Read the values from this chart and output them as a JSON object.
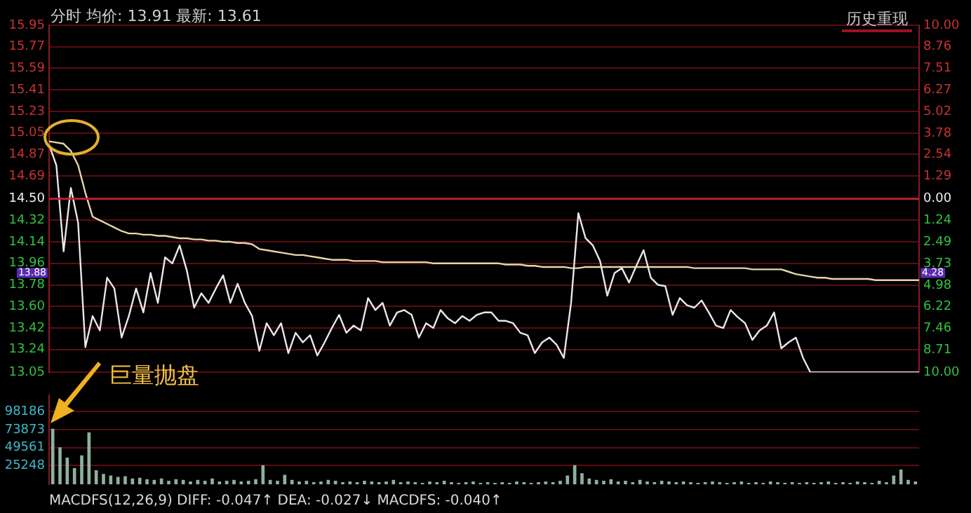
{
  "chart_data": [
    {
      "type": "line",
      "title": "分时 均价: 13.91 最新: 13.61",
      "annotations": [
        "历史重现",
        {
          "text": "13.88",
          "y": 13.88
        },
        {
          "text": "4.28",
          "y": 13.88
        }
      ],
      "categories": [
        null,
        null,
        null,
        null,
        null,
        null,
        null,
        null,
        null,
        null,
        null,
        null,
        null,
        null,
        null,
        null,
        null,
        null,
        null,
        null,
        null,
        null,
        null,
        null,
        null,
        null,
        null,
        null,
        null,
        null,
        null,
        null,
        null,
        null,
        null,
        null,
        null,
        null,
        null,
        null,
        null,
        null,
        null,
        null,
        null,
        null,
        null,
        null,
        null,
        null,
        null,
        null,
        null,
        null,
        null,
        null,
        null,
        null,
        null,
        null,
        null,
        null,
        null,
        null,
        null,
        null,
        null,
        null,
        null,
        null,
        null,
        null,
        null,
        null,
        null,
        null,
        null,
        null,
        null,
        null,
        null,
        null,
        null,
        null,
        null,
        null,
        null,
        null,
        null,
        null,
        null,
        null,
        null,
        null,
        null,
        null,
        null,
        null,
        null,
        null,
        null,
        null,
        null,
        null,
        null,
        null,
        null,
        null,
        null,
        null,
        null,
        null,
        null,
        null,
        null,
        null,
        null,
        null,
        null,
        null,
        null
      ],
      "series": [
        {
          "color": "#e8e8e8",
          "values": [
            14.95,
            14.78,
            14.06,
            14.59,
            14.3,
            13.26,
            13.52,
            13.4,
            13.84,
            13.75,
            13.34,
            13.52,
            13.75,
            13.55,
            13.88,
            13.63,
            14.01,
            13.96,
            14.11,
            13.9,
            13.59,
            13.71,
            13.63,
            13.75,
            13.86,
            13.63,
            13.79,
            13.63,
            13.52,
            13.23,
            13.46,
            13.36,
            13.46,
            13.21,
            13.38,
            13.3,
            13.36,
            13.19,
            13.3,
            13.42,
            13.53,
            13.38,
            13.44,
            13.4,
            13.67,
            13.57,
            13.63,
            13.44,
            13.55,
            13.57,
            13.53,
            13.34,
            13.46,
            13.42,
            13.57,
            13.5,
            13.46,
            13.52,
            13.48,
            13.53,
            13.55,
            13.55,
            13.48,
            13.48,
            13.46,
            13.38,
            13.36,
            13.21,
            13.3,
            13.34,
            13.28,
            13.17,
            13.63,
            14.38,
            14.17,
            14.11,
            13.98,
            13.69,
            13.88,
            13.92,
            13.8,
            13.94,
            14.07,
            13.84,
            13.78,
            13.77,
            13.53,
            13.67,
            13.61,
            13.59,
            13.65,
            13.55,
            13.44,
            13.42,
            13.57,
            13.51,
            13.46,
            13.32,
            13.4,
            13.44,
            13.55,
            13.25,
            13.3,
            13.34,
            13.17,
            13.05,
            13.05,
            13.05,
            13.05,
            13.05,
            13.05,
            13.05,
            13.05,
            13.05,
            13.05,
            13.05,
            13.05,
            13.05,
            13.05,
            13.05,
            13.05
          ]
        },
        {
          "color": "#e6d6a8",
          "values": [
            14.98,
            14.97,
            14.96,
            14.9,
            14.78,
            14.55,
            14.35,
            14.32,
            14.29,
            14.26,
            14.23,
            14.21,
            14.21,
            14.2,
            14.2,
            14.19,
            14.19,
            14.18,
            14.17,
            14.17,
            14.16,
            14.16,
            14.15,
            14.15,
            14.14,
            14.14,
            14.13,
            14.13,
            14.12,
            14.08,
            14.07,
            14.06,
            14.05,
            14.04,
            14.03,
            14.03,
            14.02,
            14.01,
            14.0,
            13.99,
            13.99,
            13.99,
            13.98,
            13.98,
            13.98,
            13.98,
            13.97,
            13.97,
            13.97,
            13.97,
            13.97,
            13.97,
            13.97,
            13.96,
            13.96,
            13.96,
            13.96,
            13.96,
            13.96,
            13.96,
            13.96,
            13.96,
            13.96,
            13.95,
            13.95,
            13.95,
            13.94,
            13.94,
            13.93,
            13.93,
            13.93,
            13.93,
            13.92,
            13.92,
            13.93,
            13.93,
            13.93,
            13.93,
            13.93,
            13.93,
            13.93,
            13.93,
            13.93,
            13.93,
            13.93,
            13.93,
            13.93,
            13.93,
            13.93,
            13.92,
            13.92,
            13.92,
            13.92,
            13.92,
            13.92,
            13.92,
            13.92,
            13.91,
            13.91,
            13.91,
            13.91,
            13.91,
            13.89,
            13.87,
            13.86,
            13.85,
            13.84,
            13.84,
            13.83,
            13.83,
            13.83,
            13.83,
            13.83,
            13.83,
            13.82,
            13.82,
            13.82,
            13.82,
            13.82,
            13.82,
            13.82
          ]
        }
      ],
      "ylim": [
        13.05,
        15.95
      ],
      "yticks": [
        13.05,
        13.24,
        13.42,
        {
          "value": 13.6,
          "label": "13.60"
        },
        13.78,
        13.96,
        14.14,
        14.32,
        {
          "value": 14.5,
          "label": "14.50"
        },
        14.69,
        14.87,
        15.05,
        15.23,
        15.41,
        15.59,
        15.77,
        15.95
      ],
      "y2lim": [
        -10,
        10
      ],
      "y2ticks": [
        {
          "value": -10,
          "label": "10.00"
        },
        {
          "value": -8.71,
          "label": "8.71"
        },
        {
          "value": -7.46,
          "label": "7.46"
        },
        {
          "value": -6.22,
          "label": "6.22"
        },
        {
          "value": -4.98,
          "label": "4.98"
        },
        {
          "value": -3.73,
          "label": "3.73"
        },
        {
          "value": -2.49,
          "label": "2.49"
        },
        {
          "value": -1.24,
          "label": "1.24"
        },
        {
          "value": 0,
          "label": "0.00"
        },
        1.29,
        2.54,
        3.78,
        5.02,
        6.27,
        7.51,
        8.76,
        {
          "value": 10,
          "label": "10.00"
        }
      ],
      "ref_lines": [
        {
          "axis": "y",
          "value": 14.5,
          "color": "#c8202c"
        }
      ],
      "grid": "y",
      "tick_labels": "y"
    },
    {
      "type": "bar",
      "annotations": [
        "巨量抛盘",
        "MACDFS(12,26,9) DIFF: -0.047↑ DEA: -0.027↓ MACDFS: -0.040↑"
      ],
      "categories": [
        null,
        null,
        null,
        null,
        null,
        null,
        null,
        null,
        null,
        null,
        null,
        null,
        null,
        null,
        null,
        null,
        null,
        null,
        null,
        null,
        null,
        null,
        null,
        null,
        null,
        null,
        null,
        null,
        null,
        null,
        null,
        null,
        null,
        null,
        null,
        null,
        null,
        null,
        null,
        null,
        null,
        null,
        null,
        null,
        null,
        null,
        null,
        null,
        null,
        null,
        null,
        null,
        null,
        null,
        null,
        null,
        null,
        null,
        null,
        null,
        null,
        null,
        null,
        null,
        null,
        null,
        null,
        null,
        null,
        null,
        null,
        null,
        null,
        null,
        null,
        null,
        null,
        null,
        null,
        null,
        null,
        null,
        null,
        null,
        null,
        null,
        null,
        null,
        null,
        null,
        null,
        null,
        null,
        null,
        null,
        null,
        null,
        null,
        null,
        null,
        null,
        null,
        null,
        null,
        null,
        null,
        null,
        null,
        null,
        null,
        null,
        null,
        null,
        null,
        null,
        null,
        null,
        null,
        null,
        null
      ],
      "values": [
        75000,
        50000,
        36000,
        22000,
        39000,
        70000,
        19000,
        14000,
        12000,
        10000,
        11000,
        8000,
        9000,
        7000,
        6000,
        8000,
        5000,
        7000,
        6000,
        4000,
        6000,
        5000,
        8000,
        4000,
        5000,
        6000,
        4000,
        5000,
        7000,
        26000,
        6000,
        5000,
        13000,
        6000,
        4000,
        5000,
        3000,
        4000,
        6000,
        5000,
        3000,
        4000,
        3000,
        5000,
        4000,
        3000,
        4000,
        6000,
        3000,
        4000,
        3000,
        2000,
        4000,
        3000,
        5000,
        3000,
        2000,
        3000,
        4000,
        2000,
        3000,
        2000,
        3000,
        2000,
        4000,
        3000,
        2000,
        3000,
        4000,
        3000,
        5000,
        12000,
        26000,
        15000,
        8000,
        6000,
        5000,
        7000,
        4000,
        5000,
        3000,
        6000,
        4000,
        3000,
        5000,
        4000,
        3000,
        4000,
        3000,
        2000,
        3000,
        4000,
        3000,
        2000,
        3000,
        4000,
        2000,
        3000,
        2000,
        4000,
        3000,
        2000,
        3000,
        2000,
        3000,
        2000,
        3000,
        4000,
        2000,
        3000,
        2000,
        4000,
        3000,
        2000,
        5000,
        3000,
        12000,
        20000,
        6000,
        4000
      ],
      "color": "#8fb0a0",
      "ylim": [
        0,
        120000
      ],
      "yticks": [
        25248,
        49561,
        73873,
        98186
      ],
      "grid": "y",
      "tick_labels": "y"
    }
  ]
}
